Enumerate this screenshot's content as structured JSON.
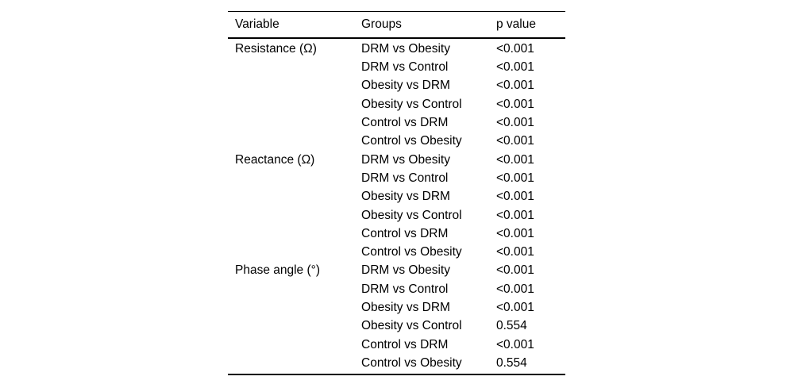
{
  "table": {
    "headers": {
      "variable": "Variable",
      "groups": "Groups",
      "p": "p value"
    },
    "rows": [
      {
        "variable": "Resistance (Ω)",
        "groups": "DRM vs Obesity",
        "p": "<0.001"
      },
      {
        "variable": "",
        "groups": "DRM vs Control",
        "p": "<0.001"
      },
      {
        "variable": "",
        "groups": "Obesity vs DRM",
        "p": "<0.001"
      },
      {
        "variable": "",
        "groups": "Obesity vs Control",
        "p": "<0.001"
      },
      {
        "variable": "",
        "groups": "Control vs DRM",
        "p": "<0.001"
      },
      {
        "variable": "",
        "groups": "Control vs Obesity",
        "p": "<0.001"
      },
      {
        "variable": "Reactance (Ω)",
        "groups": "DRM vs Obesity",
        "p": "<0.001"
      },
      {
        "variable": "",
        "groups": "DRM vs Control",
        "p": "<0.001"
      },
      {
        "variable": "",
        "groups": "Obesity vs DRM",
        "p": "<0.001"
      },
      {
        "variable": "",
        "groups": "Obesity vs Control",
        "p": "<0.001"
      },
      {
        "variable": "",
        "groups": "Control vs DRM",
        "p": "<0.001"
      },
      {
        "variable": "",
        "groups": "Control vs Obesity",
        "p": "<0.001"
      },
      {
        "variable": "Phase angle (°)",
        "groups": "DRM vs Obesity",
        "p": "<0.001"
      },
      {
        "variable": "",
        "groups": "DRM vs Control",
        "p": "<0.001"
      },
      {
        "variable": "",
        "groups": "Obesity vs DRM",
        "p": "<0.001"
      },
      {
        "variable": "",
        "groups": "Obesity vs Control",
        "p": "0.554"
      },
      {
        "variable": "",
        "groups": "Control vs DRM",
        "p": "<0.001"
      },
      {
        "variable": "",
        "groups": "Control vs Obesity",
        "p": "0.554"
      }
    ],
    "colors": {
      "text": "#000000",
      "background": "#ffffff",
      "rule": "#000000"
    }
  }
}
